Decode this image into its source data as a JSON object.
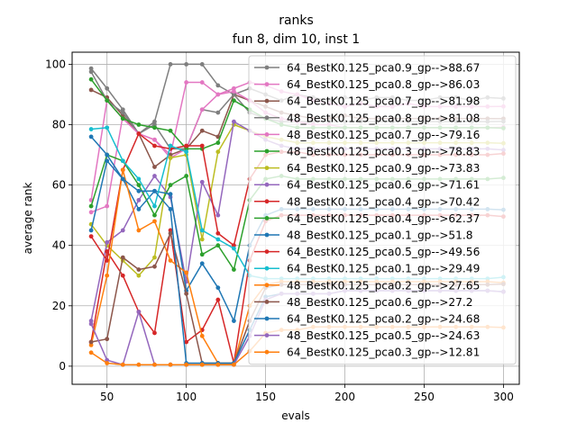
{
  "chart_data": {
    "type": "line",
    "title": "ranks",
    "subtitle": "fun 8, dim 10, inst 1",
    "xlabel": "evals",
    "ylabel": "average rank",
    "xlim": [
      28,
      310
    ],
    "ylim": [
      -6,
      104
    ],
    "xticks": [
      50,
      100,
      150,
      200,
      250,
      300
    ],
    "yticks": [
      0,
      20,
      40,
      60,
      80,
      100
    ],
    "grid": true,
    "legend_placement": "top-right",
    "x": [
      40,
      50,
      60,
      70,
      80,
      90,
      100,
      110,
      120,
      130,
      140,
      150,
      160,
      170,
      180,
      190,
      200,
      210,
      220,
      230,
      240,
      250,
      260,
      270,
      280,
      290,
      300
    ],
    "series": [
      {
        "name": "64_BestK0.125_pca0.9_gp-->88.67",
        "color": "#7f7f7f",
        "values": [
          98.6,
          92,
          85,
          77,
          81,
          100,
          100,
          100,
          93,
          90,
          92,
          90,
          88,
          90,
          89,
          88,
          89,
          88,
          89,
          89,
          88,
          88,
          89,
          89,
          88,
          89,
          88.67
        ]
      },
      {
        "name": "64_BestK0.125_pca0.8_gp-->86.03",
        "color": "#e377c2",
        "values": [
          51,
          53,
          83,
          77,
          75,
          70,
          94,
          94,
          90,
          92,
          94,
          93,
          91,
          90,
          88,
          87,
          86,
          87,
          86,
          86,
          87,
          86,
          86,
          86,
          86,
          86,
          86.03
        ]
      },
      {
        "name": "64_BestK0.125_pca0.7_gp-->81.98",
        "color": "#8c564b",
        "values": [
          91.5,
          89,
          83,
          77,
          66,
          70,
          72,
          78,
          76,
          90,
          88,
          86,
          84,
          83,
          82,
          82,
          83,
          82,
          82,
          82,
          82,
          82,
          82,
          82,
          82,
          82,
          81.98
        ]
      },
      {
        "name": "48_BestK0.125_pca0.8_gp-->81.08",
        "color": "#7f7f7f",
        "values": [
          97.5,
          88,
          84,
          77,
          80,
          72,
          72,
          85,
          84,
          90,
          84,
          82,
          81,
          81,
          81,
          81,
          81,
          81,
          81,
          81,
          81,
          81,
          81,
          81,
          81,
          81,
          81.08
        ]
      },
      {
        "name": "48_BestK0.125_pca0.7_gp-->79.16",
        "color": "#e377c2",
        "values": [
          55,
          88,
          82,
          77,
          75,
          69,
          72,
          85,
          90,
          91,
          88,
          84,
          82,
          81,
          80,
          80,
          79,
          79,
          79,
          79,
          79,
          79,
          79,
          79,
          79,
          79,
          79.16
        ]
      },
      {
        "name": "48_BestK0.125_pca0.3_gp-->78.83",
        "color": "#2ca02c",
        "values": [
          95,
          88,
          82,
          80,
          79,
          78,
          72,
          72,
          74,
          88,
          85,
          82,
          80,
          79,
          79,
          79,
          79,
          79,
          79,
          79,
          79,
          79,
          79,
          79,
          79,
          79,
          78.83
        ]
      },
      {
        "name": "64_BestK0.125_pca0.9_gp-->73.83",
        "color": "#bcbd22",
        "values": [
          47,
          40,
          35,
          30,
          36,
          69,
          70,
          42,
          71,
          80,
          78,
          76,
          75,
          74,
          74,
          74,
          74,
          74,
          74,
          74,
          74,
          74,
          74,
          74,
          74,
          74,
          73.83
        ]
      },
      {
        "name": "64_BestK0.125_pca0.6_gp-->71.61",
        "color": "#9467bd",
        "values": [
          15,
          41,
          45,
          55,
          63,
          56,
          28,
          61,
          50,
          81,
          78,
          75,
          73,
          72,
          72,
          72,
          72,
          72,
          72,
          72,
          72,
          72,
          72,
          72,
          72,
          72,
          71.61
        ]
      },
      {
        "name": "48_BestK0.125_pca0.4_gp-->70.42",
        "color": "#d62728",
        "values": [
          43,
          35,
          65,
          77,
          73,
          72,
          73,
          73,
          44,
          40,
          62,
          70,
          71,
          71,
          70,
          70,
          70,
          70,
          70,
          70,
          70,
          70,
          70,
          70,
          70,
          70,
          70.42
        ]
      },
      {
        "name": "64_BestK0.125_pca0.4_gp-->62.37",
        "color": "#2ca02c",
        "values": [
          53,
          70,
          68,
          60,
          50,
          60,
          63,
          37,
          40,
          32,
          55,
          62,
          63,
          62,
          62,
          62,
          62,
          62,
          62,
          62,
          62,
          62,
          62,
          62,
          62,
          62,
          62.37
        ]
      },
      {
        "name": "48_BestK0.125_pca0.1_gp-->51.8",
        "color": "#1f77b4",
        "values": [
          45,
          68,
          62,
          52,
          58,
          57,
          25,
          34,
          26,
          15,
          40,
          50,
          52,
          52,
          52,
          52,
          52,
          52,
          52,
          52,
          52,
          52,
          52,
          52,
          52,
          52,
          51.8
        ]
      },
      {
        "name": "64_BestK0.125_pca0.5_gp-->49.56",
        "color": "#d62728",
        "values": [
          8,
          38,
          30,
          18,
          11,
          45,
          8,
          12,
          22,
          1,
          35,
          48,
          50,
          50,
          50,
          50,
          50,
          50,
          50,
          50,
          50,
          50,
          50,
          50,
          50,
          50,
          49.56
        ]
      },
      {
        "name": "64_BestK0.125_pca0.1_gp-->29.49",
        "color": "#17becf",
        "values": [
          78.5,
          79,
          68,
          62,
          53,
          73,
          71,
          45,
          42,
          39,
          30,
          29,
          29,
          29,
          29,
          29,
          29,
          29,
          29,
          29,
          29,
          29,
          29,
          29,
          29,
          29,
          29.49
        ]
      },
      {
        "name": "48_BestK0.125_pca0.2_gp-->27.65",
        "color": "#ff7f0e",
        "values": [
          7,
          30,
          65,
          45,
          48,
          35,
          31,
          10,
          1,
          1,
          20,
          27,
          28,
          28,
          28,
          28,
          28,
          28,
          28,
          28,
          28,
          28,
          28,
          28,
          28,
          28,
          27.65
        ]
      },
      {
        "name": "48_BestK0.125_pca0.6_gp-->27.2",
        "color": "#8c564b",
        "values": [
          8,
          9,
          36,
          32,
          33,
          44,
          24,
          1,
          1,
          1,
          15,
          26,
          27,
          27,
          27,
          27,
          27,
          27,
          27,
          27,
          27,
          27,
          27,
          27,
          27,
          27,
          27.2
        ]
      },
      {
        "name": "64_BestK0.125_pca0.2_gp-->24.68",
        "color": "#1f77b4",
        "values": [
          76,
          70,
          62,
          58,
          58,
          52,
          1,
          1,
          1,
          1,
          12,
          23,
          24,
          24,
          24,
          24,
          25,
          25,
          25,
          25,
          25,
          25,
          25,
          25,
          25,
          25,
          24.68
        ]
      },
      {
        "name": "48_BestK0.125_pca0.5_gp-->24.63",
        "color": "#9467bd",
        "values": [
          14,
          2,
          0.5,
          18,
          0.5,
          0.5,
          0.5,
          0.5,
          0.5,
          0.5,
          10,
          22,
          24,
          24,
          24,
          24,
          25,
          25,
          25,
          25,
          25,
          25,
          25,
          25,
          25,
          25,
          24.63
        ]
      },
      {
        "name": "64_BestK0.125_pca0.3_gp-->12.81",
        "color": "#ff7f0e",
        "values": [
          4.5,
          1,
          0.5,
          0.5,
          0.5,
          0.5,
          0.5,
          0.5,
          0.5,
          0.5,
          5,
          11,
          12,
          12,
          13,
          13,
          13,
          13,
          13,
          13,
          13,
          13,
          13,
          13,
          13,
          13,
          12.81
        ]
      }
    ]
  }
}
